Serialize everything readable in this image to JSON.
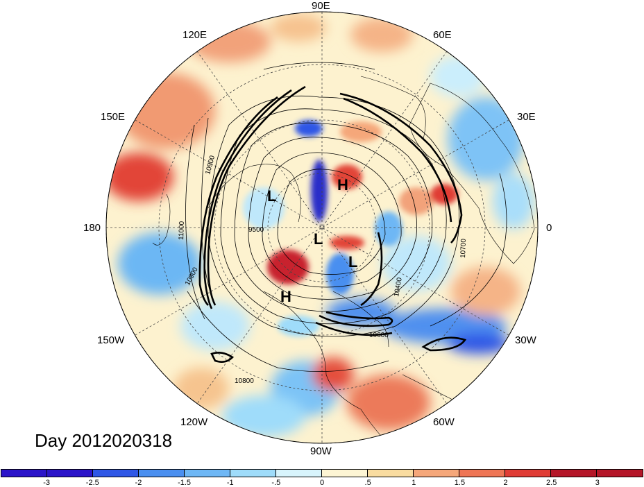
{
  "map": {
    "date_label": "Day 2012020318",
    "longitude_labels": {
      "top": "90E",
      "upper_left": "120E",
      "upper_right": "60E",
      "left_upper": "150E",
      "right_upper": "30E",
      "left": "180",
      "right": "0",
      "left_lower": "150W",
      "right_lower": "30W",
      "lower_left": "120W",
      "lower_right": "60W",
      "bottom": "90W"
    },
    "pressure_systems": {
      "high_north": "H",
      "low_west": "L",
      "low_center": "L",
      "low_east": "L",
      "high_south": "H"
    },
    "contour_labels": {
      "c10900_left": "10900",
      "c11000_left": "11000",
      "c10900_lower": "10900",
      "c10800": "10800",
      "c10600": "10600",
      "c10400": "10400",
      "c10700": "10700",
      "c9500": "9500"
    }
  },
  "colorbar": {
    "tick_labels": [
      "-3",
      "-2.5",
      "-2",
      "-1.5",
      "-1",
      "-.5",
      "0",
      ".5",
      "1",
      "1.5",
      "2",
      "2.5",
      "3"
    ],
    "colors": [
      "#2b14c9",
      "#2f57e6",
      "#4a8ff0",
      "#6eb7f5",
      "#9fdcfa",
      "#d8f4fc",
      "#fdf5d4",
      "#f9dca0",
      "#f5a77a",
      "#ee7555",
      "#e03c35",
      "#b41628"
    ]
  }
}
